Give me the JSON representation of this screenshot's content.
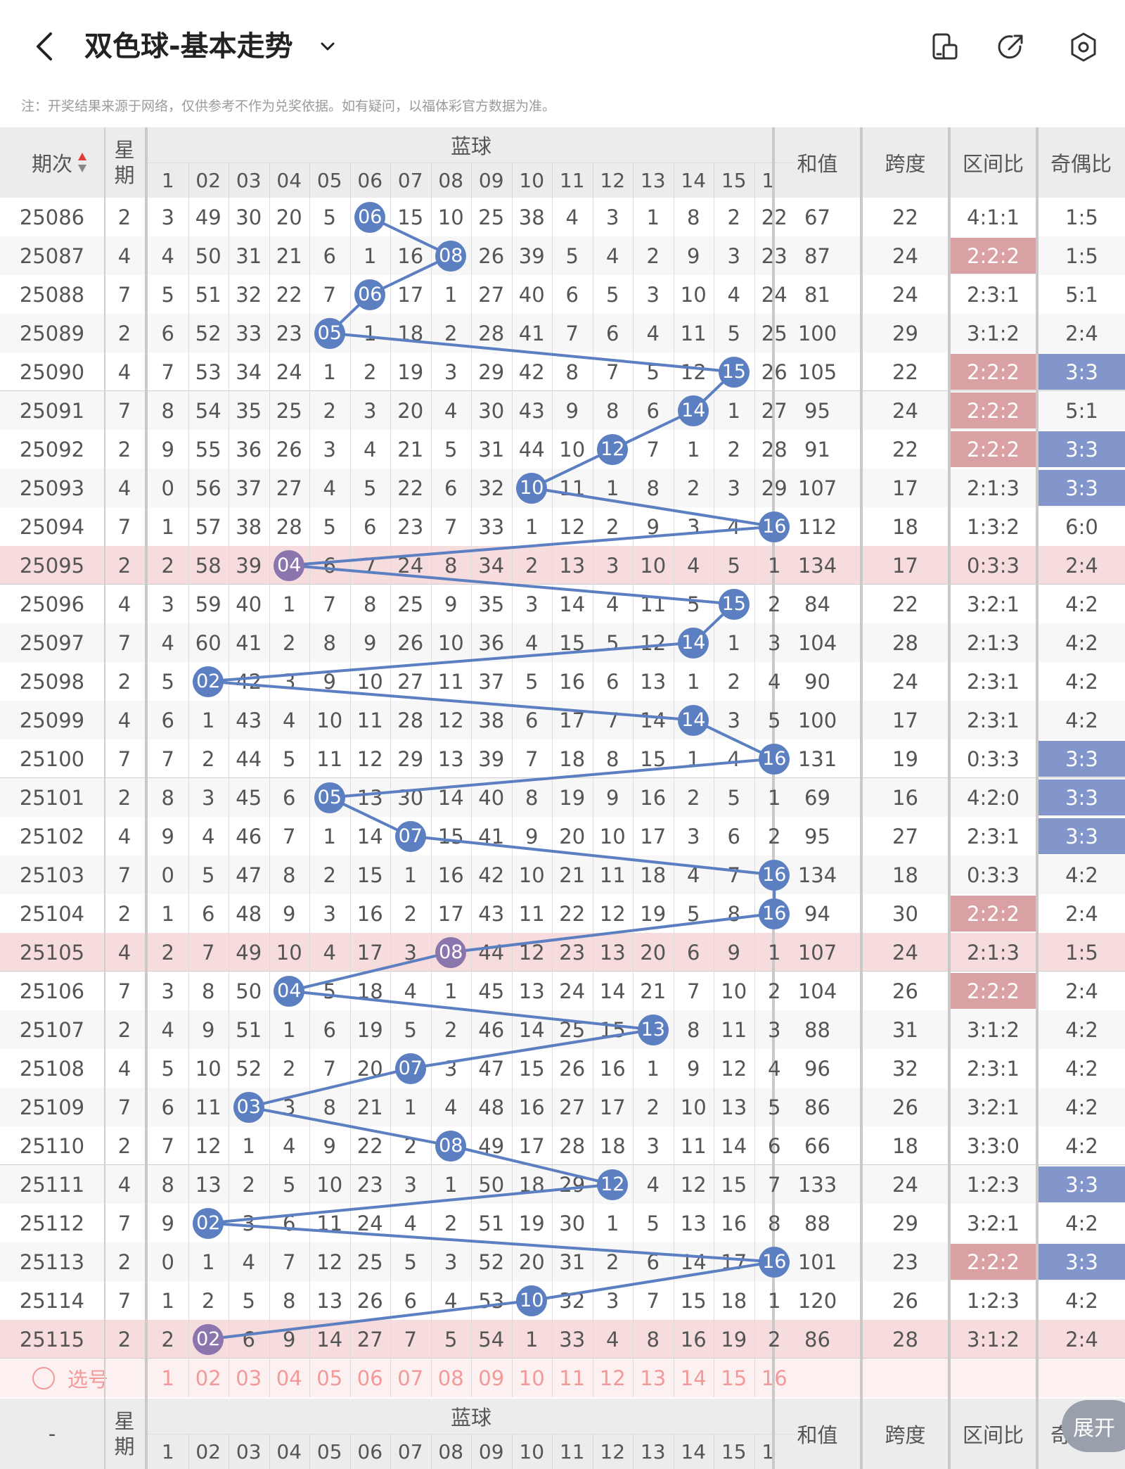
{
  "header": {
    "title": "双色球-基本走势"
  },
  "note": "注：开奖结果来源于网络，仅供参考不作为兑奖依据。如有疑问，以福体彩官方数据为准。",
  "columns": {
    "period": "期次",
    "weekday_top": "星",
    "weekday_bottom": "期",
    "blue": "蓝球",
    "sum": "和值",
    "span": "跨度",
    "zone": "区间比",
    "parity": "奇偶比"
  },
  "blue_numbers": [
    "1",
    "02",
    "03",
    "04",
    "05",
    "06",
    "07",
    "08",
    "09",
    "10",
    "11",
    "12",
    "13",
    "14",
    "15",
    "16"
  ],
  "rows": [
    {
      "period": "25086",
      "weekday": "2",
      "cells": [
        "3",
        "49",
        "30",
        "20",
        "5",
        "06",
        "15",
        "10",
        "25",
        "38",
        "4",
        "3",
        "1",
        "8",
        "2",
        "22"
      ],
      "ball": 6,
      "sum": "67",
      "span": "22",
      "zone": "4:1:1",
      "parity": "1:5",
      "zone_hl": false,
      "parity_hl": false,
      "row_hl": false
    },
    {
      "period": "25087",
      "weekday": "4",
      "cells": [
        "4",
        "50",
        "31",
        "21",
        "6",
        "1",
        "16",
        "08",
        "26",
        "39",
        "5",
        "4",
        "2",
        "9",
        "3",
        "23"
      ],
      "ball": 8,
      "sum": "87",
      "span": "24",
      "zone": "2:2:2",
      "parity": "1:5",
      "zone_hl": true,
      "parity_hl": false,
      "row_hl": false
    },
    {
      "period": "25088",
      "weekday": "7",
      "cells": [
        "5",
        "51",
        "32",
        "22",
        "7",
        "06",
        "17",
        "1",
        "27",
        "40",
        "6",
        "5",
        "3",
        "10",
        "4",
        "24"
      ],
      "ball": 6,
      "sum": "81",
      "span": "24",
      "zone": "2:3:1",
      "parity": "5:1",
      "zone_hl": false,
      "parity_hl": false,
      "row_hl": false
    },
    {
      "period": "25089",
      "weekday": "2",
      "cells": [
        "6",
        "52",
        "33",
        "23",
        "05",
        "1",
        "18",
        "2",
        "28",
        "41",
        "7",
        "6",
        "4",
        "11",
        "5",
        "25"
      ],
      "ball": 5,
      "sum": "100",
      "span": "29",
      "zone": "3:1:2",
      "parity": "2:4",
      "zone_hl": false,
      "parity_hl": false,
      "row_hl": false
    },
    {
      "period": "25090",
      "weekday": "4",
      "cells": [
        "7",
        "53",
        "34",
        "24",
        "1",
        "2",
        "19",
        "3",
        "29",
        "42",
        "8",
        "7",
        "5",
        "12",
        "15",
        "26"
      ],
      "ball": 15,
      "sum": "105",
      "span": "22",
      "zone": "2:2:2",
      "parity": "3:3",
      "zone_hl": true,
      "parity_hl": true,
      "row_hl": false
    },
    {
      "period": "25091",
      "weekday": "7",
      "cells": [
        "8",
        "54",
        "35",
        "25",
        "2",
        "3",
        "20",
        "4",
        "30",
        "43",
        "9",
        "8",
        "6",
        "14",
        "1",
        "27"
      ],
      "ball": 14,
      "sum": "95",
      "span": "24",
      "zone": "2:2:2",
      "parity": "5:1",
      "zone_hl": true,
      "parity_hl": false,
      "row_hl": false
    },
    {
      "period": "25092",
      "weekday": "2",
      "cells": [
        "9",
        "55",
        "36",
        "26",
        "3",
        "4",
        "21",
        "5",
        "31",
        "44",
        "10",
        "12",
        "7",
        "1",
        "2",
        "28"
      ],
      "ball": 12,
      "sum": "91",
      "span": "22",
      "zone": "2:2:2",
      "parity": "3:3",
      "zone_hl": true,
      "parity_hl": true,
      "row_hl": false
    },
    {
      "period": "25093",
      "weekday": "4",
      "cells": [
        "0",
        "56",
        "37",
        "27",
        "4",
        "5",
        "22",
        "6",
        "32",
        "10",
        "11",
        "1",
        "8",
        "2",
        "3",
        "29"
      ],
      "ball": 10,
      "sum": "107",
      "span": "17",
      "zone": "2:1:3",
      "parity": "3:3",
      "zone_hl": false,
      "parity_hl": true,
      "row_hl": false
    },
    {
      "period": "25094",
      "weekday": "7",
      "cells": [
        "1",
        "57",
        "38",
        "28",
        "5",
        "6",
        "23",
        "7",
        "33",
        "1",
        "12",
        "2",
        "9",
        "3",
        "4",
        "16"
      ],
      "ball": 16,
      "sum": "112",
      "span": "18",
      "zone": "1:3:2",
      "parity": "6:0",
      "zone_hl": false,
      "parity_hl": false,
      "row_hl": false
    },
    {
      "period": "25095",
      "weekday": "2",
      "cells": [
        "2",
        "58",
        "39",
        "04",
        "6",
        "7",
        "24",
        "8",
        "34",
        "2",
        "13",
        "3",
        "10",
        "4",
        "5",
        "1"
      ],
      "ball": 4,
      "sum": "134",
      "span": "17",
      "zone": "0:3:3",
      "parity": "2:4",
      "zone_hl": false,
      "parity_hl": false,
      "row_hl": true
    },
    {
      "period": "25096",
      "weekday": "4",
      "cells": [
        "3",
        "59",
        "40",
        "1",
        "7",
        "8",
        "25",
        "9",
        "35",
        "3",
        "14",
        "4",
        "11",
        "5",
        "15",
        "2"
      ],
      "ball": 15,
      "sum": "84",
      "span": "22",
      "zone": "3:2:1",
      "parity": "4:2",
      "zone_hl": false,
      "parity_hl": false,
      "row_hl": false
    },
    {
      "period": "25097",
      "weekday": "7",
      "cells": [
        "4",
        "60",
        "41",
        "2",
        "8",
        "9",
        "26",
        "10",
        "36",
        "4",
        "15",
        "5",
        "12",
        "14",
        "1",
        "3"
      ],
      "ball": 14,
      "sum": "104",
      "span": "28",
      "zone": "2:1:3",
      "parity": "4:2",
      "zone_hl": false,
      "parity_hl": false,
      "row_hl": false
    },
    {
      "period": "25098",
      "weekday": "2",
      "cells": [
        "5",
        "02",
        "42",
        "3",
        "9",
        "10",
        "27",
        "11",
        "37",
        "5",
        "16",
        "6",
        "13",
        "1",
        "2",
        "4"
      ],
      "ball": 2,
      "sum": "90",
      "span": "24",
      "zone": "2:3:1",
      "parity": "4:2",
      "zone_hl": false,
      "parity_hl": false,
      "row_hl": false
    },
    {
      "period": "25099",
      "weekday": "4",
      "cells": [
        "6",
        "1",
        "43",
        "4",
        "10",
        "11",
        "28",
        "12",
        "38",
        "6",
        "17",
        "7",
        "14",
        "14",
        "3",
        "5"
      ],
      "ball": 14,
      "sum": "100",
      "span": "17",
      "zone": "2:3:1",
      "parity": "4:2",
      "zone_hl": false,
      "parity_hl": false,
      "row_hl": false
    },
    {
      "period": "25100",
      "weekday": "7",
      "cells": [
        "7",
        "2",
        "44",
        "5",
        "11",
        "12",
        "29",
        "13",
        "39",
        "7",
        "18",
        "8",
        "15",
        "1",
        "4",
        "16"
      ],
      "ball": 16,
      "sum": "131",
      "span": "19",
      "zone": "0:3:3",
      "parity": "3:3",
      "zone_hl": false,
      "parity_hl": true,
      "row_hl": false
    },
    {
      "period": "25101",
      "weekday": "2",
      "cells": [
        "8",
        "3",
        "45",
        "6",
        "05",
        "13",
        "30",
        "14",
        "40",
        "8",
        "19",
        "9",
        "16",
        "2",
        "5",
        "1"
      ],
      "ball": 5,
      "sum": "69",
      "span": "16",
      "zone": "4:2:0",
      "parity": "3:3",
      "zone_hl": false,
      "parity_hl": true,
      "row_hl": false
    },
    {
      "period": "25102",
      "weekday": "4",
      "cells": [
        "9",
        "4",
        "46",
        "7",
        "1",
        "14",
        "07",
        "15",
        "41",
        "9",
        "20",
        "10",
        "17",
        "3",
        "6",
        "2"
      ],
      "ball": 7,
      "sum": "95",
      "span": "27",
      "zone": "2:3:1",
      "parity": "3:3",
      "zone_hl": false,
      "parity_hl": true,
      "row_hl": false
    },
    {
      "period": "25103",
      "weekday": "7",
      "cells": [
        "0",
        "5",
        "47",
        "8",
        "2",
        "15",
        "1",
        "16",
        "42",
        "10",
        "21",
        "11",
        "18",
        "4",
        "7",
        "16"
      ],
      "ball": 16,
      "sum": "134",
      "span": "18",
      "zone": "0:3:3",
      "parity": "4:2",
      "zone_hl": false,
      "parity_hl": false,
      "row_hl": false
    },
    {
      "period": "25104",
      "weekday": "2",
      "cells": [
        "1",
        "6",
        "48",
        "9",
        "3",
        "16",
        "2",
        "17",
        "43",
        "11",
        "22",
        "12",
        "19",
        "5",
        "8",
        "16"
      ],
      "ball": 16,
      "sum": "94",
      "span": "30",
      "zone": "2:2:2",
      "parity": "2:4",
      "zone_hl": true,
      "parity_hl": false,
      "row_hl": false
    },
    {
      "period": "25105",
      "weekday": "4",
      "cells": [
        "2",
        "7",
        "49",
        "10",
        "4",
        "17",
        "3",
        "08",
        "44",
        "12",
        "23",
        "13",
        "20",
        "6",
        "9",
        "1"
      ],
      "ball": 8,
      "sum": "107",
      "span": "24",
      "zone": "2:1:3",
      "parity": "1:5",
      "zone_hl": false,
      "parity_hl": false,
      "row_hl": true
    },
    {
      "period": "25106",
      "weekday": "7",
      "cells": [
        "3",
        "8",
        "50",
        "04",
        "5",
        "18",
        "4",
        "1",
        "45",
        "13",
        "24",
        "14",
        "21",
        "7",
        "10",
        "2"
      ],
      "ball": 4,
      "sum": "104",
      "span": "26",
      "zone": "2:2:2",
      "parity": "2:4",
      "zone_hl": true,
      "parity_hl": false,
      "row_hl": false
    },
    {
      "period": "25107",
      "weekday": "2",
      "cells": [
        "4",
        "9",
        "51",
        "1",
        "6",
        "19",
        "5",
        "2",
        "46",
        "14",
        "25",
        "15",
        "13",
        "8",
        "11",
        "3"
      ],
      "ball": 13,
      "sum": "88",
      "span": "31",
      "zone": "3:1:2",
      "parity": "4:2",
      "zone_hl": false,
      "parity_hl": false,
      "row_hl": false
    },
    {
      "period": "25108",
      "weekday": "4",
      "cells": [
        "5",
        "10",
        "52",
        "2",
        "7",
        "20",
        "07",
        "3",
        "47",
        "15",
        "26",
        "16",
        "1",
        "9",
        "12",
        "4"
      ],
      "ball": 7,
      "sum": "96",
      "span": "32",
      "zone": "2:3:1",
      "parity": "4:2",
      "zone_hl": false,
      "parity_hl": false,
      "row_hl": false
    },
    {
      "period": "25109",
      "weekday": "7",
      "cells": [
        "6",
        "11",
        "03",
        "3",
        "8",
        "21",
        "1",
        "4",
        "48",
        "16",
        "27",
        "17",
        "2",
        "10",
        "13",
        "5"
      ],
      "ball": 3,
      "sum": "86",
      "span": "26",
      "zone": "3:2:1",
      "parity": "4:2",
      "zone_hl": false,
      "parity_hl": false,
      "row_hl": false
    },
    {
      "period": "25110",
      "weekday": "2",
      "cells": [
        "7",
        "12",
        "1",
        "4",
        "9",
        "22",
        "2",
        "08",
        "49",
        "17",
        "28",
        "18",
        "3",
        "11",
        "14",
        "6"
      ],
      "ball": 8,
      "sum": "66",
      "span": "18",
      "zone": "3:3:0",
      "parity": "4:2",
      "zone_hl": false,
      "parity_hl": false,
      "row_hl": false
    },
    {
      "period": "25111",
      "weekday": "4",
      "cells": [
        "8",
        "13",
        "2",
        "5",
        "10",
        "23",
        "3",
        "1",
        "50",
        "18",
        "29",
        "12",
        "4",
        "12",
        "15",
        "7"
      ],
      "ball": 12,
      "sum": "133",
      "span": "24",
      "zone": "1:2:3",
      "parity": "3:3",
      "zone_hl": false,
      "parity_hl": true,
      "row_hl": false
    },
    {
      "period": "25112",
      "weekday": "7",
      "cells": [
        "9",
        "02",
        "3",
        "6",
        "11",
        "24",
        "4",
        "2",
        "51",
        "19",
        "30",
        "1",
        "5",
        "13",
        "16",
        "8"
      ],
      "ball": 2,
      "sum": "88",
      "span": "29",
      "zone": "3:2:1",
      "parity": "4:2",
      "zone_hl": false,
      "parity_hl": false,
      "row_hl": false
    },
    {
      "period": "25113",
      "weekday": "2",
      "cells": [
        "0",
        "1",
        "4",
        "7",
        "12",
        "25",
        "5",
        "3",
        "52",
        "20",
        "31",
        "2",
        "6",
        "14",
        "17",
        "16"
      ],
      "ball": 16,
      "sum": "101",
      "span": "23",
      "zone": "2:2:2",
      "parity": "3:3",
      "zone_hl": true,
      "parity_hl": true,
      "row_hl": false
    },
    {
      "period": "25114",
      "weekday": "7",
      "cells": [
        "1",
        "2",
        "5",
        "8",
        "13",
        "26",
        "6",
        "4",
        "53",
        "10",
        "32",
        "3",
        "7",
        "15",
        "18",
        "1"
      ],
      "ball": 10,
      "sum": "120",
      "span": "26",
      "zone": "1:2:3",
      "parity": "4:2",
      "zone_hl": false,
      "parity_hl": false,
      "row_hl": false
    },
    {
      "period": "25115",
      "weekday": "2",
      "cells": [
        "2",
        "02",
        "6",
        "9",
        "14",
        "27",
        "7",
        "5",
        "54",
        "1",
        "33",
        "4",
        "8",
        "16",
        "19",
        "2"
      ],
      "ball": 2,
      "sum": "86",
      "span": "28",
      "zone": "3:1:2",
      "parity": "2:4",
      "zone_hl": false,
      "parity_hl": false,
      "row_hl": true
    }
  ],
  "pick_row": {
    "label": "选号"
  },
  "footer_header": {
    "dash": "-"
  },
  "expand_label": "展开",
  "colors": {
    "ball": "#5b7fc1",
    "ball_highlight": "#8a76ad",
    "row_highlight": "#f7dcdd",
    "zone_highlight": "#d9a1a3",
    "parity_highlight": "#8296cc",
    "pick_text": "#f29a9a"
  }
}
